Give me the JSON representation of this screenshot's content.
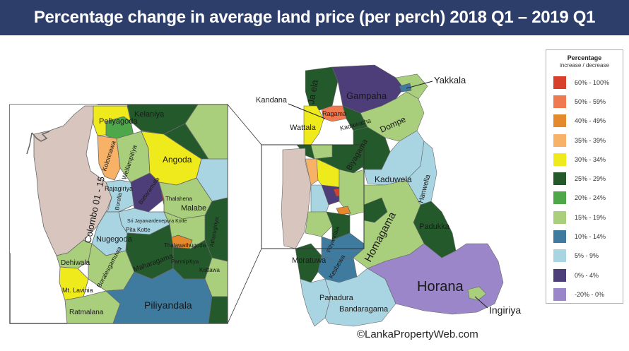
{
  "header": {
    "title": "Percentage change in average land price (per perch) 2018 Q1 – 2019 Q1"
  },
  "legend": {
    "title": "Percentage",
    "subtitle": "increase / decrease",
    "items": [
      {
        "label": "60% - 100%",
        "color": "#d9402b"
      },
      {
        "label": "50% - 59%",
        "color": "#ef7a52"
      },
      {
        "label": "40% - 49%",
        "color": "#e58a2c"
      },
      {
        "label": "35% - 39%",
        "color": "#f7b267"
      },
      {
        "label": "30% - 34%",
        "color": "#eeea1c"
      },
      {
        "label": "25% - 29%",
        "color": "#245a2b"
      },
      {
        "label": "20% - 24%",
        "color": "#4ea84a"
      },
      {
        "label": "15% - 19%",
        "color": "#a9cf7c"
      },
      {
        "label": "10% - 14%",
        "color": "#3e7b9f"
      },
      {
        "label": "5% -  9%",
        "color": "#a9d5e3"
      },
      {
        "label": "0% -  4%",
        "color": "#4d3d78"
      },
      {
        "label": "-20% -  0%",
        "color": "#9a86c9"
      }
    ]
  },
  "inset_labels": {
    "colombo": "Colombo 01 - 15",
    "kelaniya": "Kelaniya",
    "peliyagoda": "Peliyagoda",
    "kolonnawa": "Kolonnawa",
    "wellampitiya": "Wellampitiya",
    "angoda": "Angoda",
    "rajagiriya": "Rajagiriya",
    "borella": "Borella",
    "battaramulla": "Battaramulla",
    "thalahena": "Thalahena",
    "malabe": "Malabe",
    "sri_kotte": "Sri Jayawardenepura Kotte",
    "pita_kotte": "Pita Kotte",
    "nugegoda": "Nugegoda",
    "thalawathugoda": "Thalawathugoda",
    "athurugiriya": "Athurugiriya",
    "dehiwala": "Dehiwala",
    "boralesgamuwa": "Boralesgamuwa",
    "maharagama": "Maharagama",
    "pannipitiya": "Pannipitiya",
    "kottawa": "Kottawa",
    "mt_lavinia": "Mt. Lavinia",
    "ratmalana": "Ratmalana",
    "piliyandala": "Piliyandala"
  },
  "main_labels": {
    "ja_ela": "Ja ela",
    "gampaha": "Gampaha",
    "yakkala": "Yakkala",
    "kandana": "Kandana",
    "ragama": "Ragama",
    "wattala": "Wattala",
    "kadawatha": "Kadawatha",
    "dompe": "Dompe",
    "biyagama": "Biyagama",
    "kaduwela": "Kaduwela",
    "hanwella": "Hanwella",
    "padukka": "Padukka",
    "homagama": "Homagama",
    "piliyandala": "Piliyandala",
    "moratuwa": "Moratuwa",
    "kesbewa": "Kesbewa",
    "horana": "Horana",
    "panadura": "Panadura",
    "bandaragama": "Bandaragama",
    "ingiriya": "Ingiriya"
  },
  "credit": "©LankaPropertyWeb.com"
}
